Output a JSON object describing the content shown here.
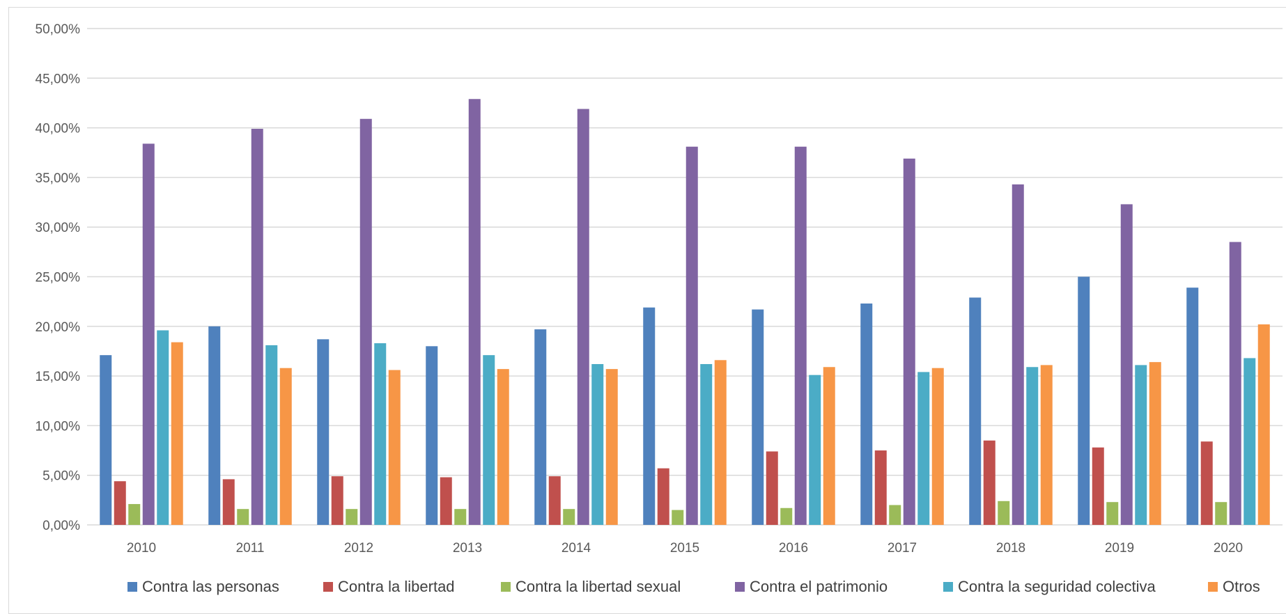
{
  "chart_data": {
    "type": "bar",
    "title": "",
    "xlabel": "",
    "ylabel": "",
    "ylim": [
      0,
      50
    ],
    "y_tick_step": 5,
    "y_tick_format": "percent-comma-2",
    "grid": true,
    "legend_position": "bottom",
    "categories": [
      "2010",
      "2011",
      "2012",
      "2013",
      "2014",
      "2015",
      "2016",
      "2017",
      "2018",
      "2019",
      "2020"
    ],
    "series": [
      {
        "name": "Contra las personas",
        "color": "#4F81BD",
        "values": [
          17.1,
          20.0,
          18.7,
          18.0,
          19.7,
          21.9,
          21.7,
          22.3,
          22.9,
          25.0,
          23.9
        ]
      },
      {
        "name": "Contra la libertad",
        "color": "#C0504D",
        "values": [
          4.4,
          4.6,
          4.9,
          4.8,
          4.9,
          5.7,
          7.4,
          7.5,
          8.5,
          7.8,
          8.4
        ]
      },
      {
        "name": "Contra la libertad sexual",
        "color": "#9BBB59",
        "values": [
          2.1,
          1.6,
          1.6,
          1.6,
          1.6,
          1.5,
          1.7,
          2.0,
          2.4,
          2.3,
          2.3
        ]
      },
      {
        "name": "Contra el patrimonio",
        "color": "#8064A2",
        "values": [
          38.4,
          39.9,
          40.9,
          42.9,
          41.9,
          38.1,
          38.1,
          36.9,
          34.3,
          32.3,
          28.5
        ]
      },
      {
        "name": "Contra la seguridad colectiva",
        "color": "#4BACC6",
        "values": [
          19.6,
          18.1,
          18.3,
          17.1,
          16.2,
          16.2,
          15.1,
          15.4,
          15.9,
          16.1,
          16.8
        ]
      },
      {
        "name": "Otros",
        "color": "#F79646",
        "values": [
          18.4,
          15.8,
          15.6,
          15.7,
          15.7,
          16.6,
          15.9,
          15.8,
          16.1,
          16.4,
          20.2
        ]
      }
    ],
    "gridline_color": "#d9d9d9"
  }
}
